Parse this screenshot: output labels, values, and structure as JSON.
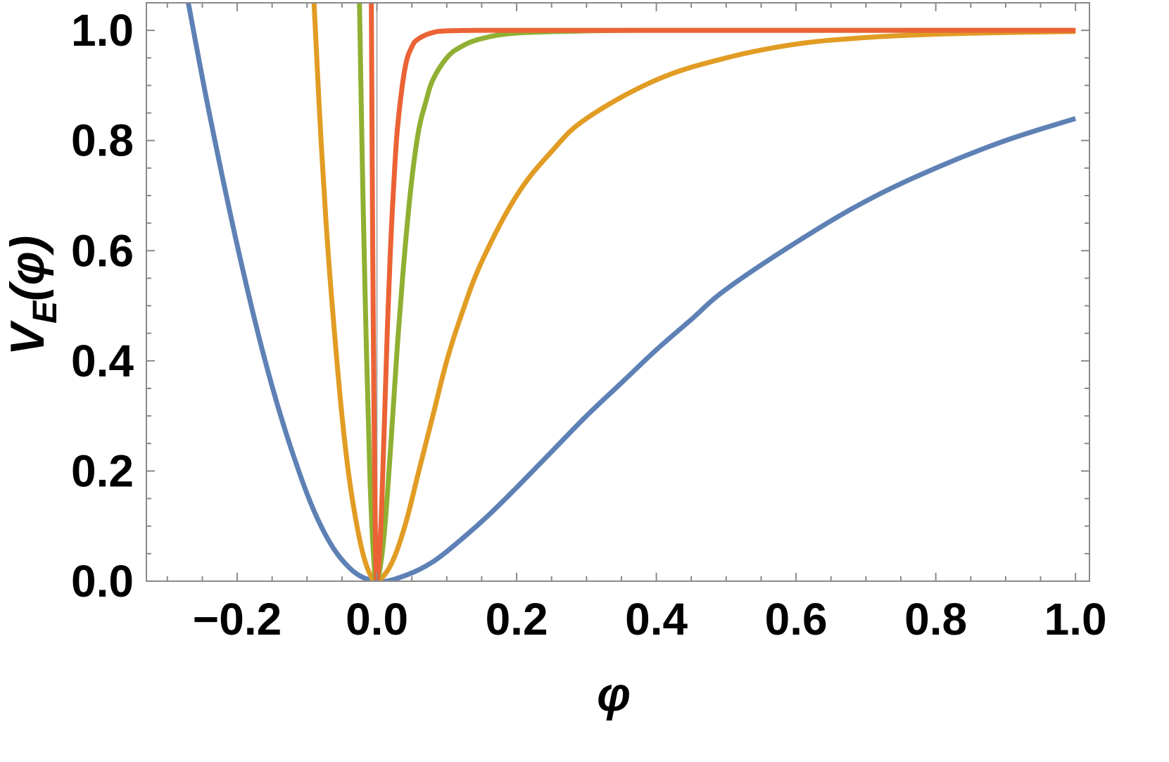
{
  "chart_data": {
    "type": "line",
    "title": "",
    "xlabel": "φ",
    "ylabel": {
      "main": "V",
      "sub": "E",
      "arg": "(φ)"
    },
    "xlim": [
      -0.33,
      1.02
    ],
    "ylim": [
      0,
      1.05
    ],
    "grid": false,
    "legend": "none",
    "x_ticks": [
      {
        "value": -0.2,
        "label": "−0.2"
      },
      {
        "value": 0.0,
        "label": "0.0"
      },
      {
        "value": 0.2,
        "label": "0.2"
      },
      {
        "value": 0.4,
        "label": "0.4"
      },
      {
        "value": 0.6,
        "label": "0.6"
      },
      {
        "value": 0.8,
        "label": "0.8"
      },
      {
        "value": 1.0,
        "label": "1.0"
      }
    ],
    "y_ticks": [
      {
        "value": 0.0,
        "label": "0.0"
      },
      {
        "value": 0.2,
        "label": "0.2"
      },
      {
        "value": 0.4,
        "label": "0.4"
      },
      {
        "value": 0.6,
        "label": "0.6"
      },
      {
        "value": 0.8,
        "label": "0.8"
      },
      {
        "value": 1.0,
        "label": "1.0"
      }
    ],
    "series": [
      {
        "color": "#5e81b5",
        "x": [
          -0.27,
          -0.24,
          -0.2,
          -0.16,
          -0.12,
          -0.08,
          -0.04,
          0.0,
          0.04,
          0.08,
          0.12,
          0.16,
          0.2,
          0.25,
          0.3,
          0.35,
          0.4,
          0.45,
          0.5,
          0.6,
          0.7,
          0.8,
          0.9,
          1.0
        ],
        "y": [
          1.05,
          0.85,
          0.61,
          0.4,
          0.23,
          0.1,
          0.025,
          0.0,
          0.01,
          0.035,
          0.075,
          0.12,
          0.17,
          0.235,
          0.3,
          0.36,
          0.42,
          0.475,
          0.53,
          0.615,
          0.69,
          0.75,
          0.8,
          0.84
        ]
      },
      {
        "color": "#e19c24",
        "x": [
          -0.09,
          -0.08,
          -0.07,
          -0.06,
          -0.05,
          -0.04,
          -0.03,
          -0.02,
          -0.01,
          0.0,
          0.02,
          0.04,
          0.06,
          0.08,
          0.1,
          0.12,
          0.15,
          0.2,
          0.25,
          0.3,
          0.4,
          0.5,
          0.6,
          0.7,
          0.8,
          0.9,
          1.0
        ],
        "y": [
          1.05,
          0.8,
          0.6,
          0.44,
          0.3,
          0.19,
          0.11,
          0.05,
          0.013,
          0.0,
          0.03,
          0.1,
          0.2,
          0.3,
          0.4,
          0.48,
          0.58,
          0.7,
          0.78,
          0.84,
          0.91,
          0.95,
          0.975,
          0.987,
          0.993,
          0.996,
          0.998
        ]
      },
      {
        "color": "#8fb032",
        "x": [
          -0.025,
          -0.02,
          -0.015,
          -0.01,
          -0.005,
          0.0,
          0.01,
          0.02,
          0.03,
          0.04,
          0.05,
          0.06,
          0.07,
          0.08,
          0.1,
          0.12,
          0.15,
          0.2,
          0.3,
          0.4,
          0.6,
          0.8,
          1.0
        ],
        "y": [
          1.05,
          0.7,
          0.42,
          0.19,
          0.05,
          0.0,
          0.08,
          0.25,
          0.44,
          0.6,
          0.73,
          0.82,
          0.87,
          0.91,
          0.95,
          0.97,
          0.985,
          0.995,
          0.999,
          1.0,
          1.0,
          1.0,
          1.0
        ]
      },
      {
        "color": "#eb6235",
        "x": [
          -0.008,
          -0.006,
          -0.004,
          -0.002,
          0.0,
          0.005,
          0.01,
          0.015,
          0.02,
          0.025,
          0.03,
          0.04,
          0.05,
          0.06,
          0.08,
          0.1,
          0.15,
          0.3,
          0.5,
          0.7,
          1.0
        ],
        "y": [
          1.05,
          0.6,
          0.28,
          0.07,
          0.0,
          0.08,
          0.26,
          0.46,
          0.62,
          0.74,
          0.83,
          0.93,
          0.97,
          0.985,
          0.996,
          0.999,
          1.0,
          1.0,
          1.0,
          1.0,
          1.0
        ]
      }
    ]
  }
}
